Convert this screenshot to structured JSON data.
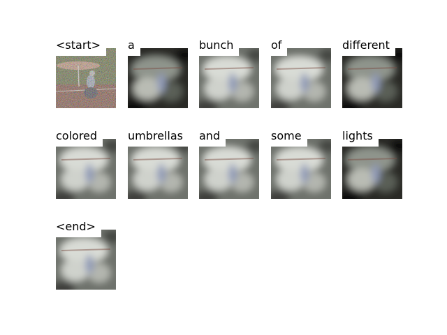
{
  "figure": {
    "panels": [
      {
        "word": "<start>",
        "style": "noise"
      },
      {
        "word": "a",
        "style": "dark"
      },
      {
        "word": "bunch",
        "style": "light"
      },
      {
        "word": "of",
        "style": "light"
      },
      {
        "word": "different",
        "style": "dark"
      },
      {
        "word": "colored",
        "style": "light"
      },
      {
        "word": "umbrellas",
        "style": "light"
      },
      {
        "word": "and",
        "style": "light"
      },
      {
        "word": "some",
        "style": "light"
      },
      {
        "word": "lights",
        "style": "dark"
      },
      {
        "word": "<end>",
        "style": "light"
      }
    ]
  },
  "colors": {
    "background": "#ffffff",
    "label_text": "#000000",
    "label_bg": "#ffffff"
  }
}
